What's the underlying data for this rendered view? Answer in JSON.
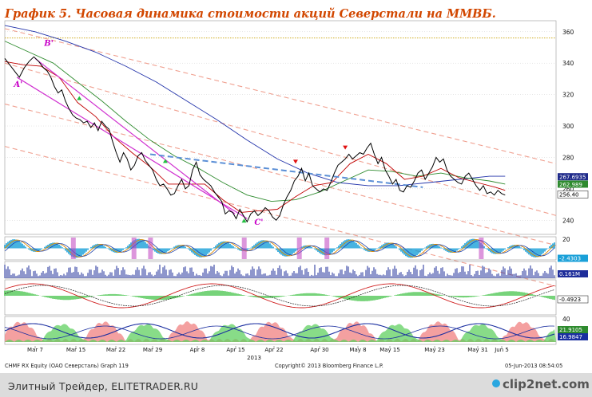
{
  "title": "График 5.   Часовая динамика стоимости акций Северстали на ММВБ.",
  "footer": {
    "left": "CHMF RX Equity (ОАО Северсталь) Graph 119",
    "center": "Copyright© 2013 Bloomberg Finance L.P.",
    "right": "05-Jun-2013 08:54:05"
  },
  "watermark": {
    "left": "Элитный Трейдер, ELITETRADER.RU",
    "right": "clip2net.com"
  },
  "colors": {
    "price": "#000000",
    "ma_short": "#c00000",
    "ma_mid": "#2e8b2e",
    "ma_long": "#2233aa",
    "channel": "#f0a090",
    "trend_blue": "#5b8fd6",
    "wedge": "#d030d0",
    "resist_dotted": "#c8a000",
    "title": "#d24700"
  },
  "chart_data": {
    "type": "line",
    "ylim": [
      231,
      367
    ],
    "yticks": [
      240,
      260,
      280,
      300,
      320,
      340,
      360
    ],
    "xticks": [
      "Mar 7",
      "Mar 15",
      "Mar 22",
      "Mar 29",
      "Apr 8",
      "Apr 15",
      "Apr 22",
      "Apr 30",
      "May 8",
      "May 15",
      "May 23",
      "May 31",
      "Jun 5"
    ],
    "year_label": "2013",
    "price": [
      [
        0,
        343
      ],
      [
        0.8,
        339
      ],
      [
        1.6,
        335
      ],
      [
        2.4,
        331
      ],
      [
        3.2,
        337
      ],
      [
        4.0,
        341
      ],
      [
        4.8,
        344
      ],
      [
        5.6,
        341
      ],
      [
        6.4,
        337
      ],
      [
        7.0,
        335
      ],
      [
        7.6,
        331
      ],
      [
        8.2,
        325
      ],
      [
        8.8,
        321
      ],
      [
        9.4,
        323
      ],
      [
        10.0,
        316
      ],
      [
        10.6,
        311
      ],
      [
        11.2,
        307
      ],
      [
        11.8,
        305
      ],
      [
        12.4,
        304
      ],
      [
        13.0,
        302
      ],
      [
        13.6,
        303
      ],
      [
        14.2,
        299
      ],
      [
        14.8,
        302
      ],
      [
        15.4,
        297
      ],
      [
        16.0,
        303
      ],
      [
        16.6,
        300
      ],
      [
        17.2,
        298
      ],
      [
        17.8,
        290
      ],
      [
        18.4,
        283
      ],
      [
        19.0,
        277
      ],
      [
        19.6,
        283
      ],
      [
        20.2,
        279
      ],
      [
        20.8,
        272
      ],
      [
        21.4,
        275
      ],
      [
        22.0,
        281
      ],
      [
        22.6,
        283
      ],
      [
        23.2,
        278
      ],
      [
        23.8,
        275
      ],
      [
        24.4,
        272
      ],
      [
        25.0,
        266
      ],
      [
        25.6,
        262
      ],
      [
        26.2,
        263
      ],
      [
        26.8,
        260
      ],
      [
        27.4,
        256
      ],
      [
        28.0,
        257
      ],
      [
        28.6,
        262
      ],
      [
        29.2,
        266
      ],
      [
        29.8,
        260
      ],
      [
        30.4,
        262
      ],
      [
        31.0,
        272
      ],
      [
        31.6,
        277
      ],
      [
        32.2,
        269
      ],
      [
        32.8,
        266
      ],
      [
        33.4,
        264
      ],
      [
        34.0,
        262
      ],
      [
        34.6,
        258
      ],
      [
        35.2,
        255
      ],
      [
        35.8,
        252
      ],
      [
        36.4,
        244
      ],
      [
        37.0,
        246
      ],
      [
        37.6,
        245
      ],
      [
        38.2,
        241
      ],
      [
        38.8,
        247
      ],
      [
        39.4,
        243
      ],
      [
        40.0,
        239
      ],
      [
        40.6,
        244
      ],
      [
        41.2,
        246
      ],
      [
        41.8,
        243
      ],
      [
        42.4,
        245
      ],
      [
        43.0,
        248
      ],
      [
        43.6,
        246
      ],
      [
        44.2,
        242
      ],
      [
        44.8,
        240
      ],
      [
        45.4,
        243
      ],
      [
        46.0,
        250
      ],
      [
        46.6,
        255
      ],
      [
        47.2,
        259
      ],
      [
        47.8,
        265
      ],
      [
        48.4,
        268
      ],
      [
        49.0,
        273
      ],
      [
        49.6,
        265
      ],
      [
        50.2,
        270
      ],
      [
        50.8,
        262
      ],
      [
        51.4,
        260
      ],
      [
        52.0,
        258
      ],
      [
        52.6,
        260
      ],
      [
        53.2,
        259
      ],
      [
        53.8,
        264
      ],
      [
        54.4,
        270
      ],
      [
        55.0,
        275
      ],
      [
        55.6,
        277
      ],
      [
        56.2,
        279
      ],
      [
        56.8,
        282
      ],
      [
        57.4,
        279
      ],
      [
        58.0,
        281
      ],
      [
        58.6,
        283
      ],
      [
        59.2,
        282
      ],
      [
        59.8,
        286
      ],
      [
        60.4,
        289
      ],
      [
        61.0,
        282
      ],
      [
        61.6,
        276
      ],
      [
        62.2,
        280
      ],
      [
        62.8,
        272
      ],
      [
        63.4,
        268
      ],
      [
        64.0,
        263
      ],
      [
        64.6,
        266
      ],
      [
        65.2,
        259
      ],
      [
        65.8,
        258
      ],
      [
        66.4,
        262
      ],
      [
        67.0,
        261
      ],
      [
        67.6,
        265
      ],
      [
        68.2,
        270
      ],
      [
        68.8,
        272
      ],
      [
        69.4,
        266
      ],
      [
        70.0,
        270
      ],
      [
        70.6,
        274
      ],
      [
        71.2,
        280
      ],
      [
        71.8,
        277
      ],
      [
        72.4,
        279
      ],
      [
        73.0,
        272
      ],
      [
        73.6,
        268
      ],
      [
        74.2,
        266
      ],
      [
        74.8,
        264
      ],
      [
        75.4,
        263
      ],
      [
        76.0,
        268
      ],
      [
        76.6,
        270
      ],
      [
        77.2,
        266
      ],
      [
        77.8,
        262
      ],
      [
        78.4,
        259
      ],
      [
        79.0,
        262
      ],
      [
        79.6,
        257
      ],
      [
        80.2,
        258
      ],
      [
        80.8,
        256
      ],
      [
        81.4,
        259
      ],
      [
        82.0,
        257
      ],
      [
        82.6,
        256
      ]
    ],
    "ma_short": [
      [
        0,
        341
      ],
      [
        3,
        339
      ],
      [
        6,
        338
      ],
      [
        9,
        331
      ],
      [
        12,
        315
      ],
      [
        15,
        306
      ],
      [
        18,
        293
      ],
      [
        21,
        283
      ],
      [
        24,
        274
      ],
      [
        27,
        263
      ],
      [
        30,
        263
      ],
      [
        33,
        263
      ],
      [
        36,
        253
      ],
      [
        39,
        245
      ],
      [
        42,
        246
      ],
      [
        45,
        247
      ],
      [
        48,
        255
      ],
      [
        51,
        262
      ],
      [
        54,
        264
      ],
      [
        57,
        276
      ],
      [
        60,
        282
      ],
      [
        63,
        276
      ],
      [
        66,
        266
      ],
      [
        69,
        268
      ],
      [
        72,
        273
      ],
      [
        75,
        267
      ],
      [
        78,
        264
      ],
      [
        81,
        261
      ],
      [
        82.6,
        259
      ]
    ],
    "ma_mid": [
      [
        0,
        354
      ],
      [
        4,
        347
      ],
      [
        8,
        340
      ],
      [
        12,
        328
      ],
      [
        16,
        316
      ],
      [
        20,
        303
      ],
      [
        24,
        291
      ],
      [
        28,
        281
      ],
      [
        32,
        273
      ],
      [
        36,
        264
      ],
      [
        40,
        256
      ],
      [
        44,
        252
      ],
      [
        48,
        253
      ],
      [
        52,
        258
      ],
      [
        56,
        265
      ],
      [
        60,
        272
      ],
      [
        64,
        271
      ],
      [
        68,
        268
      ],
      [
        72,
        270
      ],
      [
        76,
        267
      ],
      [
        80,
        265
      ],
      [
        82.6,
        263
      ]
    ],
    "ma_long": [
      [
        0,
        364
      ],
      [
        5,
        360
      ],
      [
        10,
        354
      ],
      [
        15,
        347
      ],
      [
        20,
        338
      ],
      [
        25,
        328
      ],
      [
        30,
        316
      ],
      [
        35,
        304
      ],
      [
        40,
        291
      ],
      [
        45,
        279
      ],
      [
        50,
        270
      ],
      [
        55,
        264
      ],
      [
        60,
        262
      ],
      [
        65,
        262
      ],
      [
        70,
        264
      ],
      [
        75,
        266
      ],
      [
        80,
        268
      ],
      [
        82.6,
        268
      ]
    ],
    "channel_lines": [
      [
        [
          0,
          362
        ],
        [
          91,
          276
        ]
      ],
      [
        [
          0,
          340
        ],
        [
          91,
          243
        ]
      ],
      [
        [
          0,
          314
        ],
        [
          91,
          224
        ]
      ],
      [
        [
          0,
          287
        ],
        [
          91,
          198
        ]
      ]
    ],
    "trend_dashed_blue": [
      [
        24,
        282
      ],
      [
        69,
        261
      ]
    ],
    "wedge_lines": [
      [
        [
          5,
          343
        ],
        [
          38,
          244
        ]
      ],
      [
        [
          2,
          331
        ],
        [
          40,
          241
        ]
      ]
    ],
    "resistance_dotted": 356,
    "tags": [
      {
        "y": 267.6935,
        "label": "267.6935",
        "color": "#1f2a8a"
      },
      {
        "y": 262.989,
        "label": "262.989",
        "color": "#2e8b2e"
      },
      {
        "y": 256.4,
        "label": "256.40",
        "color": "#ffffff"
      }
    ],
    "markers": [
      {
        "label": "B'",
        "x": 6.5,
        "y": 351
      },
      {
        "label": "A'",
        "x": 1.5,
        "y": 325
      },
      {
        "label": "C'",
        "x": 41.2,
        "y": 237
      }
    ],
    "indicators": [
      {
        "name": "osc1",
        "tag": "-2.4303"
      },
      {
        "name": "volume",
        "tag": "0.161M"
      },
      {
        "name": "macd",
        "tag": "-0.4923"
      },
      {
        "name": "dmi",
        "tag_top": "21.9105",
        "tag_bottom": "16.9847",
        "level": "40"
      }
    ],
    "indicator_axis_labels": [
      "20",
      "40"
    ]
  }
}
